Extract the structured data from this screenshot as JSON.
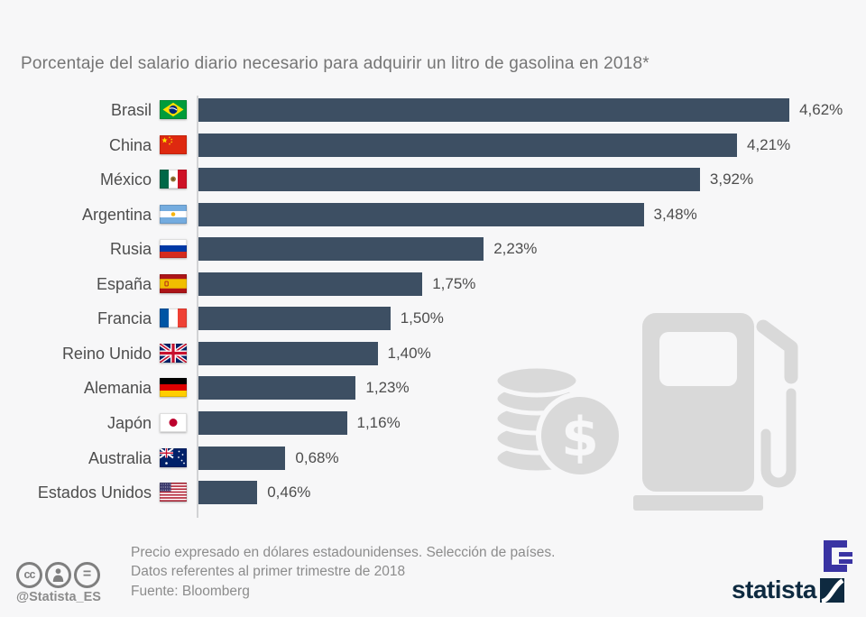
{
  "title": "Porcentaje del salario diario necesario para adquirir un litro de gasolina en 2018*",
  "chart_data": {
    "type": "bar",
    "orientation": "horizontal",
    "title": "Porcentaje del salario diario necesario para adquirir un litro de gasolina en 2018*",
    "categories": [
      "Brasil",
      "China",
      "México",
      "Argentina",
      "Rusia",
      "España",
      "Francia",
      "Reino Unido",
      "Alemania",
      "Japón",
      "Australia",
      "Estados Unidos"
    ],
    "values": [
      4.62,
      4.21,
      3.92,
      3.48,
      2.23,
      1.75,
      1.5,
      1.4,
      1.23,
      1.16,
      0.68,
      0.46
    ],
    "value_labels": [
      "4,62%",
      "4,21%",
      "3,92%",
      "3,48%",
      "2,23%",
      "1,75%",
      "1,50%",
      "1,40%",
      "1,23%",
      "1,16%",
      "0,68%",
      "0,46%"
    ],
    "flags": [
      "br",
      "cn",
      "mx",
      "ar",
      "ru",
      "es",
      "fr",
      "gb",
      "de",
      "jp",
      "au",
      "us"
    ],
    "xlim": [
      0,
      4.62
    ],
    "grid": false,
    "legend": false,
    "bar_color": "#3d4f63"
  },
  "footer": {
    "note_line1": "Precio expresado en dólares estadounidenses. Selección de países.",
    "note_line2": "Datos referentes al primer trimestre de 2018",
    "source": "Fuente: Bloomberg",
    "handle": "@Statista_ES"
  },
  "branding": {
    "wordmark": "statista"
  },
  "icons": {
    "cc_text": "cc",
    "nd_text": "=",
    "watermark_icons": [
      "money-coins-icon",
      "gas-pump-icon"
    ]
  },
  "colors": {
    "background": "#f7f7f8",
    "bar": "#3d4f63",
    "title_text": "#757575",
    "label_text": "#4d4d4d",
    "note_text": "#8c8c8c",
    "axis_line": "#d2d3d5",
    "watermark": "#d9d9d9",
    "brand_navy": "#0e2a40",
    "brand_purple": "#3a34a3"
  }
}
